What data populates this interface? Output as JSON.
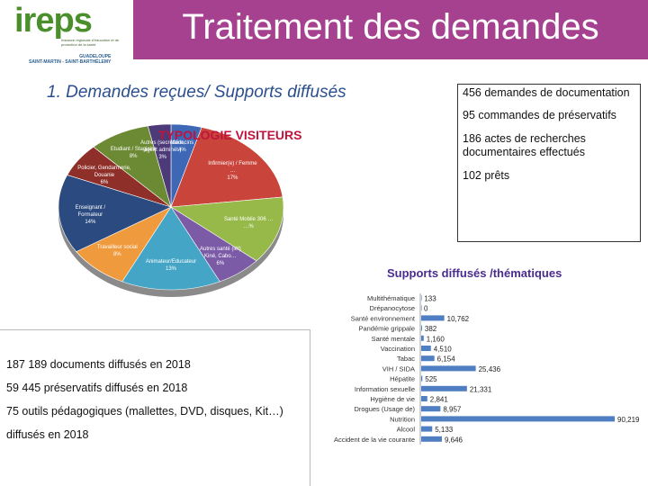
{
  "logo": {
    "word": "ireps",
    "tagline": "Instance régionale d'éducation et de promotion de la santé",
    "region_top": "GUADELOUPE",
    "region_bottom": "SAINT-MARTIN - SAINT-BARTHÉLEMY"
  },
  "header": {
    "title": "Traitement des demandes",
    "band_color": "#a5418f"
  },
  "subtitle": "1. Demandes reçues/ Supports diffusés",
  "stats": {
    "demandes": "456 demandes de documentation",
    "preservatifs": "95 commandes de préservatifs",
    "recherches": "186 actes de recherches documentaires effectués",
    "prets": "102 prêts"
  },
  "docs": {
    "line1": "187 189 documents diffusés en 2018",
    "line2": "59 445 préservatifs diffusés en 2018",
    "line3": "75 outils pédagogiques (mallettes, DVD, disques, Kit…)",
    "line4": "diffusés en 2018"
  },
  "chart_data": [
    {
      "type": "pie",
      "title": "TYPOLOGIE VISITEURS",
      "slices": [
        {
          "label": "Médecins",
          "pct_label": "4%",
          "value": 4,
          "color": "#3e67b5"
        },
        {
          "label": "Infirmier(e) / Femme …",
          "pct_label": "17%",
          "value": 17,
          "color": "#c9453b"
        },
        {
          "label": "Santé Mobile 306 …",
          "pct_label": "…%",
          "value": 12,
          "color": "#96b94a"
        },
        {
          "label": "Autres santé (iét) Kiné, Cabo…",
          "pct_label": "6%",
          "value": 6,
          "color": "#7b5aa6"
        },
        {
          "label": "Animateur/Educateur",
          "pct_label": "13%",
          "value": 13,
          "color": "#45a5c6"
        },
        {
          "label": "Travailleur social",
          "pct_label": "8%",
          "value": 8,
          "color": "#f09a3e"
        },
        {
          "label": "Enseignant / Formateur",
          "pct_label": "14%",
          "value": 14,
          "color": "#2b4a80"
        },
        {
          "label": "Policier, Gendarmerie, Douanie",
          "pct_label": "6%",
          "value": 6,
          "color": "#8f2f2a"
        },
        {
          "label": "Etudiant / Stagiaire",
          "pct_label": "8%",
          "value": 8,
          "color": "#6b8a33"
        },
        {
          "label": "Autres (secrétaire, agent adminét.)",
          "pct_label": "3%",
          "value": 3,
          "color": "#4d3a78"
        }
      ]
    },
    {
      "type": "bar",
      "title": "Supports diffusés /thématiques",
      "categories": [
        "Multithématique",
        "Drépanocytose",
        "Santé environnement",
        "Pandémie grippale",
        "Santé mentale",
        "Vaccination",
        "Tabac",
        "VIH / SIDA",
        "Hépatite",
        "Information sexuelle",
        "Hygiène de vie",
        "Drogues (Usage de)",
        "Nutrition",
        "Alcool",
        "Accident de la vie courante"
      ],
      "values": [
        133,
        0,
        10762,
        382,
        1160,
        4510,
        6154,
        25436,
        525,
        21331,
        2841,
        8957,
        90219,
        5133,
        9646
      ],
      "value_labels": [
        "133",
        "0",
        "10,762",
        "382",
        "1,160",
        "4,510",
        "6,154",
        "25,436",
        "525",
        "21,331",
        "2,841",
        "8,957",
        "90,219",
        "5,133",
        "9,646"
      ],
      "xlim": [
        0,
        90219
      ],
      "color": "#4f7ec2"
    }
  ]
}
